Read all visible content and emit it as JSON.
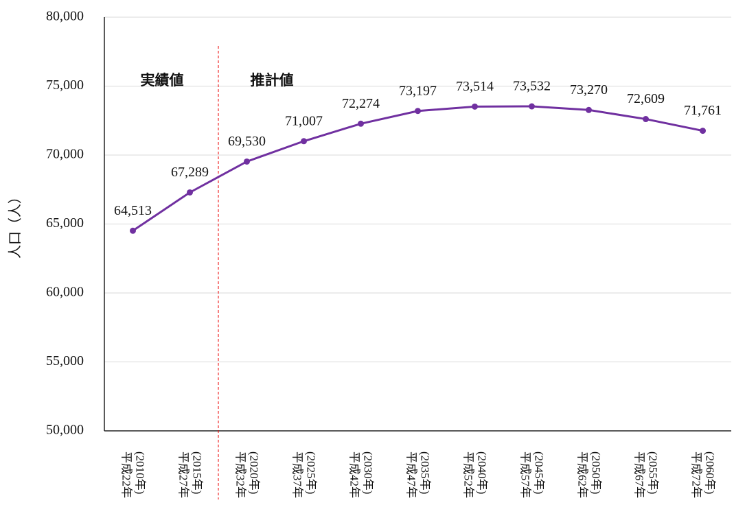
{
  "chart_data": {
    "type": "line",
    "y_label": "人口（人）",
    "categories": [
      "平成22年\n(2010年)",
      "平成27年\n(2015年)",
      "平成32年\n(2020年)",
      "平成37年\n(2025年)",
      "平成42年\n(2030年)",
      "平成47年\n(2035年)",
      "平成52年\n(2040年)",
      "平成57年\n(2045年)",
      "平成62年\n(2050年)",
      "平成67年\n(2055年)",
      "平成72年\n(2060年)"
    ],
    "values": [
      64513,
      67289,
      69530,
      71007,
      72274,
      73197,
      73514,
      73532,
      73270,
      72609,
      71761
    ],
    "value_labels": [
      "64,513",
      "67,289",
      "69,530",
      "71,007",
      "72,274",
      "73,197",
      "73,514",
      "73,532",
      "73,270",
      "72,609",
      "71,761"
    ],
    "color": "#7030a0",
    "ylim": [
      50000,
      80000
    ],
    "yticks": [
      {
        "value": 50000,
        "label": "50,000"
      },
      {
        "value": 55000,
        "label": "55,000"
      },
      {
        "value": 60000,
        "label": "60,000"
      },
      {
        "value": 65000,
        "label": "65,000"
      },
      {
        "value": 70000,
        "label": "70,000"
      },
      {
        "value": 75000,
        "label": "75,000"
      },
      {
        "value": 80000,
        "label": "80,000"
      }
    ],
    "grid": true,
    "annotations": [
      "実績値",
      "推計値"
    ]
  }
}
